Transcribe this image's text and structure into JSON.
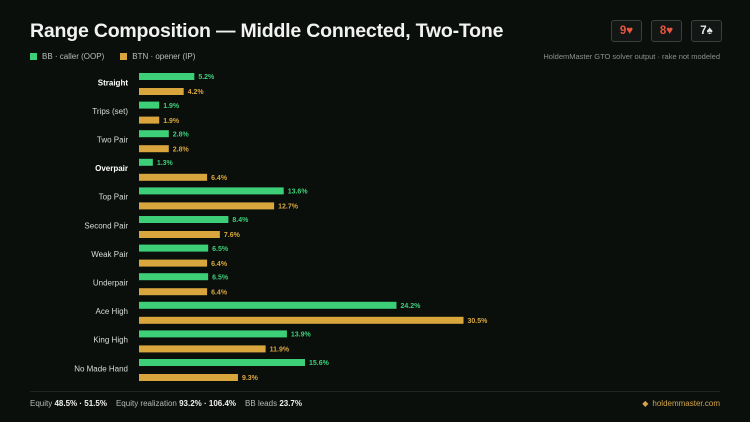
{
  "title": "Range Composition — Middle Connected, Two-Tone",
  "board": [
    {
      "rank": "9",
      "suit": "♥",
      "color": "red"
    },
    {
      "rank": "8",
      "suit": "♥",
      "color": "red"
    },
    {
      "rank": "7",
      "suit": "♠",
      "color": "black"
    }
  ],
  "source_note": "HoldemMaster GTO solver output · rake not modeled",
  "footer": {
    "equity_label": "Equity",
    "equity_value": "48.5% · 51.5%",
    "realization_label": "Equity realization",
    "realization_value": "93.2% · 106.4%",
    "leads_label": "BB leads",
    "leads_value": "23.7%",
    "brand": "holdemmaster.com"
  },
  "colors": {
    "bb": "#3ccf78",
    "btn": "#d9a63e",
    "background": "#0b0f0c"
  },
  "chart_data": {
    "type": "bar",
    "orientation": "horizontal",
    "categories": [
      "Straight",
      "Trips (set)",
      "Two Pair",
      "Overpair",
      "Top Pair",
      "Second Pair",
      "Weak Pair",
      "Underpair",
      "Ace High",
      "King High",
      "No Made Hand"
    ],
    "bold_categories": [
      "Straight",
      "Overpair"
    ],
    "series": [
      {
        "name": "BB · caller (OOP)",
        "color": "#3ccf78",
        "values": [
          5.2,
          1.9,
          2.8,
          1.3,
          13.6,
          8.4,
          6.5,
          6.5,
          24.2,
          13.9,
          15.6
        ]
      },
      {
        "name": "BTN · opener (IP)",
        "color": "#d9a63e",
        "values": [
          4.2,
          1.9,
          2.8,
          6.4,
          12.7,
          7.6,
          6.4,
          6.4,
          30.5,
          11.9,
          9.3
        ]
      }
    ],
    "unit": "%",
    "grid": false,
    "legend": "top-left"
  }
}
